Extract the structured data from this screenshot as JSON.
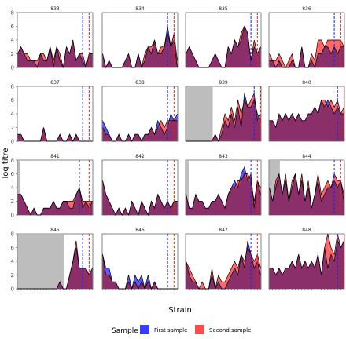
{
  "chart_data": {
    "type": "area",
    "xlabel": "Strain",
    "ylabel": "log titre",
    "ylim": [
      0,
      8
    ],
    "yticks": [
      0,
      2,
      4,
      6,
      8
    ],
    "n_strains": 24,
    "legend": {
      "title": "Sample",
      "position": "bottom",
      "entries": [
        {
          "label": "First sample",
          "color": "#3b3bff"
        },
        {
          "label": "Second sample",
          "color": "#ff4d4d"
        }
      ]
    },
    "overlap_color": "#8a2f6a",
    "vline_colors": {
      "first": "#2222ee",
      "second": "#ee2222"
    },
    "panels": [
      {
        "id": "833",
        "shade": null,
        "vlines": [
          20,
          22
        ],
        "first": [
          2,
          3,
          2,
          1,
          1,
          1,
          0,
          2,
          1,
          1,
          3,
          0,
          3,
          1,
          0,
          3,
          2,
          4,
          1,
          2,
          1,
          0,
          2,
          2
        ],
        "second": [
          2,
          3,
          2,
          2,
          1,
          1,
          1,
          2,
          2,
          1,
          3,
          1,
          3,
          2,
          0,
          3,
          2,
          4,
          1,
          2,
          2,
          0,
          2,
          2
        ]
      },
      {
        "id": "834",
        "shade": null,
        "vlines": [
          20,
          22
        ],
        "first": [
          2,
          0,
          1,
          0,
          0,
          0,
          0,
          1,
          2,
          0,
          0,
          2,
          0,
          1,
          3,
          2,
          4,
          2,
          2,
          3,
          6,
          3,
          4,
          0
        ],
        "second": [
          2,
          0,
          1,
          0,
          0,
          0,
          0,
          1,
          2,
          0,
          0,
          2,
          0,
          2,
          3,
          3,
          4,
          2,
          3,
          3,
          5,
          3,
          5,
          1
        ]
      },
      {
        "id": "835",
        "shade": null,
        "vlines": [
          20,
          22
        ],
        "first": [
          2,
          3,
          2,
          1,
          0,
          0,
          0,
          0,
          1,
          2,
          1,
          0,
          0,
          3,
          2,
          4,
          3,
          4,
          6,
          5,
          1,
          3,
          2,
          3
        ],
        "second": [
          2,
          3,
          2,
          1,
          0,
          0,
          0,
          0,
          1,
          2,
          1,
          0,
          0,
          3,
          2,
          4,
          3,
          5,
          6,
          5,
          1,
          4,
          2,
          3
        ]
      },
      {
        "id": "836",
        "shade": null,
        "vlines": [
          20,
          22
        ],
        "first": [
          1,
          1,
          0,
          1,
          0,
          0,
          0,
          1,
          0,
          0,
          3,
          0,
          0,
          1,
          0,
          2,
          2,
          3,
          3,
          2,
          3,
          2,
          3,
          3
        ],
        "second": [
          2,
          1,
          1,
          2,
          1,
          0,
          1,
          2,
          0,
          0,
          3,
          0,
          0,
          2,
          1,
          4,
          4,
          3,
          4,
          4,
          4,
          4,
          4,
          3
        ]
      },
      {
        "id": "837",
        "shade": [
          0,
          0
        ],
        "vlines": [
          20,
          22
        ],
        "first": [
          1,
          1,
          0,
          0,
          0,
          0,
          0,
          0,
          2,
          0,
          0,
          0,
          0,
          1,
          0,
          0,
          1,
          0,
          1,
          0,
          0,
          0,
          0,
          0
        ],
        "second": [
          1,
          1,
          0,
          0,
          0,
          0,
          0,
          0,
          2,
          0,
          0,
          0,
          0,
          1,
          0,
          0,
          1,
          0,
          1,
          0,
          0,
          0,
          0,
          0
        ]
      },
      {
        "id": "838",
        "shade": null,
        "vlines": [
          20,
          22
        ],
        "first": [
          3,
          2,
          1,
          0,
          0,
          1,
          0,
          0,
          1,
          0,
          1,
          1,
          0,
          1,
          1,
          2,
          1,
          3,
          2,
          1,
          2,
          4,
          3,
          4
        ],
        "second": [
          2,
          1,
          1,
          0,
          0,
          1,
          0,
          0,
          1,
          0,
          1,
          1,
          0,
          1,
          1,
          2,
          1,
          2,
          3,
          2,
          3,
          3,
          3,
          3
        ]
      },
      {
        "id": "839",
        "shade": [
          0,
          8
        ],
        "vlines": [
          21,
          23
        ],
        "first": [
          0,
          0,
          0,
          0,
          0,
          0,
          0,
          0,
          0,
          1,
          0,
          1,
          3,
          2,
          4,
          2,
          5,
          2,
          7,
          5,
          5,
          6,
          4,
          3
        ],
        "second": [
          0,
          0,
          0,
          0,
          0,
          0,
          0,
          0,
          0,
          1,
          0,
          2,
          4,
          3,
          5,
          3,
          6,
          4,
          6,
          5,
          6,
          7,
          3,
          4
        ]
      },
      {
        "id": "840",
        "shade": null,
        "vlines": [
          21,
          23
        ],
        "first": [
          3,
          3,
          2,
          4,
          3,
          4,
          3,
          4,
          3,
          4,
          3,
          3,
          4,
          4,
          5,
          4,
          6,
          5,
          6,
          5,
          4,
          5,
          4,
          4
        ],
        "second": [
          3,
          3,
          2,
          4,
          3,
          4,
          3,
          4,
          3,
          4,
          3,
          3,
          4,
          4,
          5,
          4,
          6,
          6,
          5,
          6,
          5,
          6,
          4,
          5
        ]
      },
      {
        "id": "841",
        "shade": [
          0,
          0.6
        ],
        "vlines": [
          19,
          22
        ],
        "first": [
          3,
          3,
          2,
          1,
          0,
          1,
          0,
          0,
          1,
          1,
          1,
          2,
          1,
          1,
          2,
          2,
          1,
          1,
          3,
          4,
          1,
          2,
          1,
          2
        ],
        "second": [
          3,
          3,
          2,
          1,
          0,
          1,
          0,
          0,
          1,
          1,
          1,
          2,
          1,
          1,
          2,
          2,
          2,
          2,
          3,
          4,
          2,
          2,
          2,
          2
        ]
      },
      {
        "id": "842",
        "shade": null,
        "vlines": [
          20,
          22
        ],
        "first": [
          5,
          3,
          2,
          1,
          0,
          1,
          0,
          1,
          0,
          2,
          1,
          0,
          2,
          1,
          0,
          2,
          1,
          3,
          2,
          1,
          2,
          1,
          2,
          2
        ],
        "second": [
          5,
          3,
          2,
          1,
          0,
          1,
          0,
          1,
          0,
          2,
          1,
          0,
          2,
          1,
          0,
          2,
          1,
          3,
          2,
          1,
          2,
          1,
          2,
          2
        ]
      },
      {
        "id": "843",
        "shade": [
          0,
          0.6
        ],
        "vlines": [
          20,
          22
        ],
        "first": [
          3,
          1,
          1,
          3,
          2,
          2,
          1,
          1,
          2,
          2,
          3,
          2,
          1,
          3,
          4,
          5,
          4,
          6,
          7,
          5,
          6,
          1,
          5,
          3
        ],
        "second": [
          3,
          1,
          1,
          3,
          2,
          2,
          1,
          1,
          2,
          2,
          3,
          2,
          1,
          3,
          4,
          4,
          5,
          5,
          6,
          6,
          5,
          2,
          5,
          4
        ]
      },
      {
        "id": "844",
        "shade": [
          0,
          3
        ],
        "vlines": [
          20,
          22
        ],
        "first": [
          4,
          2,
          4,
          6,
          3,
          5,
          2,
          4,
          6,
          3,
          5,
          2,
          4,
          1,
          3,
          5,
          2,
          3,
          4,
          4,
          5,
          4,
          5,
          2
        ],
        "second": [
          4,
          2,
          5,
          6,
          3,
          6,
          2,
          5,
          6,
          3,
          6,
          2,
          5,
          1,
          3,
          6,
          3,
          4,
          5,
          4,
          6,
          5,
          5,
          3
        ]
      },
      {
        "id": "845",
        "shade": [
          0,
          14
        ],
        "vlines": [
          20,
          22
        ],
        "first": [
          0,
          0,
          0,
          0,
          0,
          0,
          0,
          0,
          0,
          0,
          0,
          0,
          0,
          1,
          0,
          0,
          2,
          4,
          6,
          3,
          3,
          3,
          2,
          3
        ],
        "second": [
          0,
          0,
          0,
          0,
          0,
          0,
          0,
          0,
          0,
          0,
          0,
          0,
          0,
          1,
          0,
          0,
          2,
          4,
          7,
          3,
          3,
          3,
          2,
          3
        ]
      },
      {
        "id": "846",
        "shade": null,
        "vlines": [
          20,
          22
        ],
        "first": [
          5,
          3,
          3,
          1,
          1,
          0,
          0,
          0,
          2,
          0,
          2,
          1,
          2,
          0,
          2,
          0,
          1,
          0,
          0,
          0,
          0,
          0,
          0,
          0
        ],
        "second": [
          5,
          2,
          2,
          1,
          1,
          0,
          0,
          0,
          1,
          0,
          1,
          0,
          1,
          0,
          1,
          0,
          1,
          0,
          0,
          0,
          0,
          0,
          0,
          0
        ]
      },
      {
        "id": "847",
        "shade": null,
        "vlines": [
          20,
          22
        ],
        "first": [
          4,
          2,
          1,
          1,
          0,
          0,
          0,
          0,
          2,
          0,
          1,
          0,
          0,
          1,
          2,
          3,
          2,
          5,
          3,
          7,
          5,
          3,
          4,
          2
        ],
        "second": [
          4,
          3,
          2,
          1,
          0,
          1,
          0,
          0,
          3,
          0,
          2,
          1,
          1,
          2,
          3,
          4,
          3,
          5,
          4,
          6,
          5,
          4,
          5,
          3
        ]
      },
      {
        "id": "848",
        "shade": null,
        "vlines": [
          21,
          23
        ],
        "first": [
          3,
          3,
          2,
          3,
          2,
          3,
          3,
          4,
          3,
          5,
          3,
          4,
          3,
          4,
          3,
          5,
          2,
          6,
          3,
          5,
          4,
          7,
          6,
          7
        ],
        "second": [
          3,
          3,
          2,
          3,
          2,
          3,
          3,
          4,
          3,
          5,
          3,
          4,
          3,
          4,
          3,
          5,
          2,
          6,
          8,
          6,
          5,
          8,
          6,
          7
        ]
      }
    ]
  }
}
